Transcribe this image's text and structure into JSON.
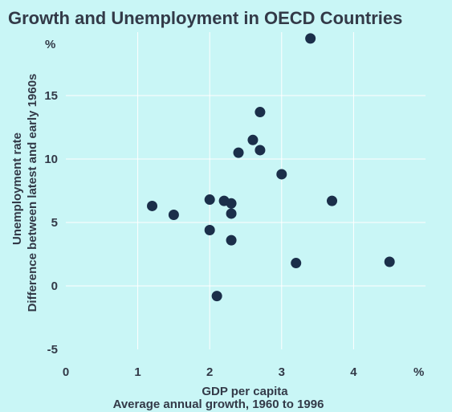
{
  "chart_data": {
    "type": "scatter",
    "title": "Growth and Unemployment in OECD Countries",
    "xlabel": "GDP per capita",
    "xlabel_sub": "Average annual growth, 1960 to 1996",
    "x_unit": "%",
    "ylabel": "Unemployment rate",
    "ylabel_sub": "Difference between latest and early 1960s",
    "y_unit": "%",
    "xlim": [
      0,
      5
    ],
    "ylim": [
      -5,
      20
    ],
    "x_ticks": [
      "0",
      "1",
      "2",
      "3",
      "4"
    ],
    "y_ticks": [
      "-5",
      "0",
      "5",
      "10",
      "15"
    ],
    "grid": true,
    "marker_color": "#1b2f4a",
    "points": [
      {
        "x": 1.2,
        "y": 6.3
      },
      {
        "x": 1.5,
        "y": 5.6
      },
      {
        "x": 2.0,
        "y": 6.8
      },
      {
        "x": 2.0,
        "y": 4.4
      },
      {
        "x": 2.1,
        "y": -0.8
      },
      {
        "x": 2.2,
        "y": 6.7
      },
      {
        "x": 2.3,
        "y": 6.5
      },
      {
        "x": 2.3,
        "y": 5.7
      },
      {
        "x": 2.3,
        "y": 3.6
      },
      {
        "x": 2.4,
        "y": 10.5
      },
      {
        "x": 2.6,
        "y": 11.5
      },
      {
        "x": 2.7,
        "y": 13.7
      },
      {
        "x": 2.7,
        "y": 10.7
      },
      {
        "x": 3.0,
        "y": 8.8
      },
      {
        "x": 3.2,
        "y": 1.8
      },
      {
        "x": 3.4,
        "y": 19.5
      },
      {
        "x": 3.7,
        "y": 6.7
      },
      {
        "x": 4.5,
        "y": 1.9
      }
    ]
  }
}
